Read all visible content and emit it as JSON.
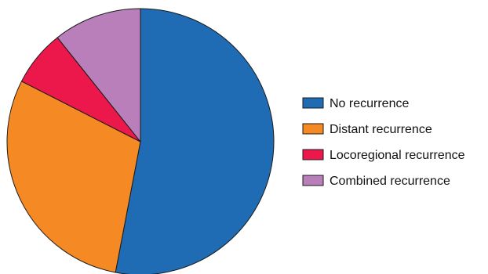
{
  "chart_data": {
    "type": "pie",
    "start_angle_deg": 0,
    "direction": "clockwise",
    "slices": [
      {
        "label": "No recurrence",
        "value": 53,
        "color": "#1f6cb5"
      },
      {
        "label": "Distant recurrence",
        "value": 29.5,
        "color": "#f58a25"
      },
      {
        "label": "Locoregional recurrence",
        "value": 6.8,
        "color": "#ec184b"
      },
      {
        "label": "Combined recurrence",
        "value": 10.7,
        "color": "#b87fbb"
      }
    ],
    "legend": {
      "placement": "right"
    }
  }
}
